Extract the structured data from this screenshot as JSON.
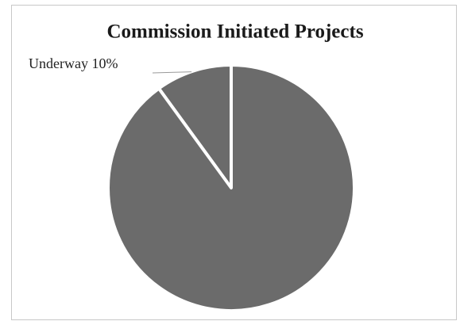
{
  "chart_data": {
    "type": "pie",
    "title": "Commission Initiated Projects",
    "categories": [
      "Underway",
      null
    ],
    "values": [
      10,
      90
    ],
    "value_labels": [
      "10%",
      null
    ],
    "colors": [
      "#6b6b6b",
      "#6b6b6b"
    ]
  }
}
